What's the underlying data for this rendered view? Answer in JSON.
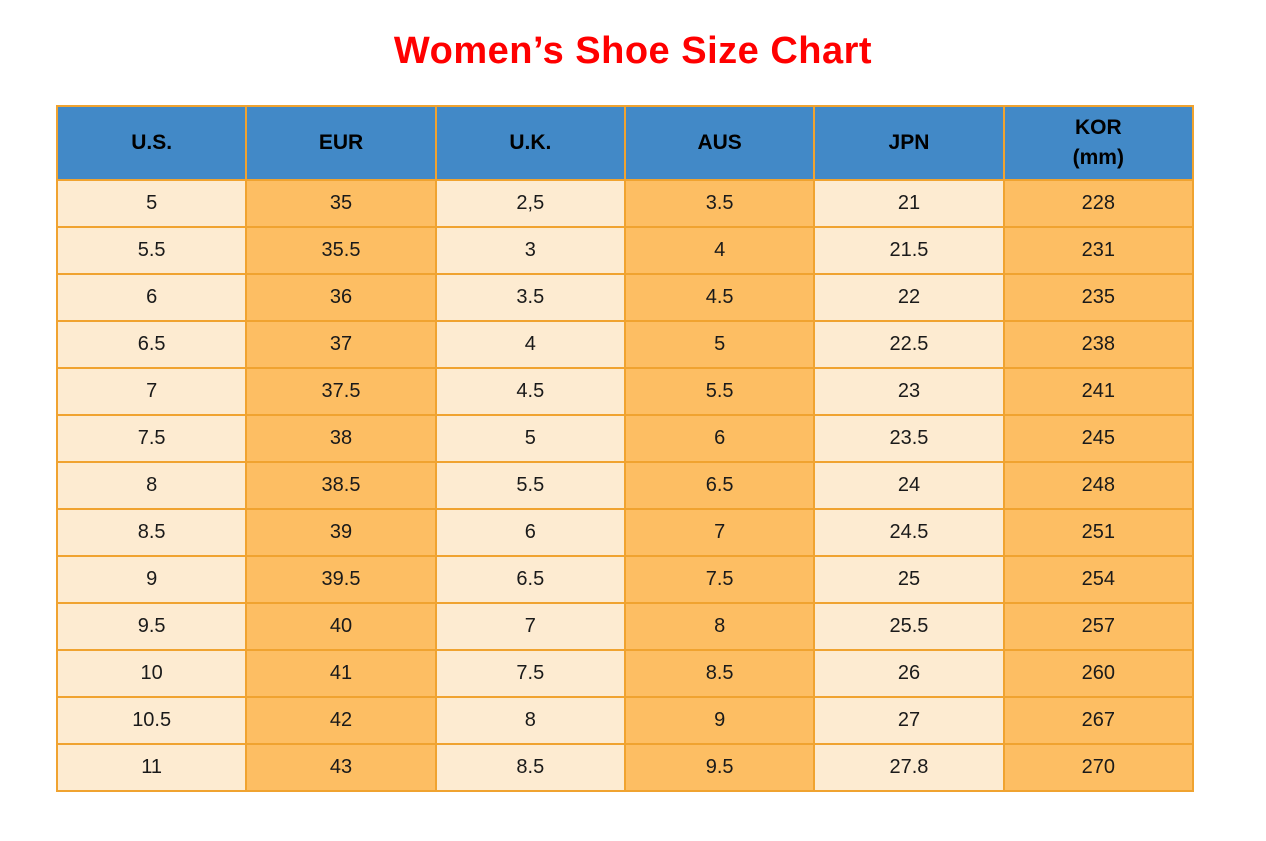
{
  "page": {
    "title": "Women’s Shoe Size Chart"
  },
  "colors": {
    "header_bg": "#4289C7",
    "row_cream": "#FDEBD1",
    "row_orange": "#FDBE63",
    "border": "#F0A330",
    "title": "#FF0000",
    "header_text": "#000000",
    "cell_text": "#1A1A1A"
  },
  "table": {
    "columns": [
      {
        "key": "us",
        "label": "U.S."
      },
      {
        "key": "eur",
        "label": "EUR"
      },
      {
        "key": "uk",
        "label": "U.K."
      },
      {
        "key": "aus",
        "label": "AUS"
      },
      {
        "key": "jpn",
        "label": "JPN"
      },
      {
        "key": "kor",
        "label": "KOR",
        "label2": "(mm)"
      }
    ],
    "rows": [
      [
        "5",
        "35",
        "2,5",
        "3.5",
        "21",
        "228"
      ],
      [
        "5.5",
        "35.5",
        "3",
        "4",
        "21.5",
        "231"
      ],
      [
        "6",
        "36",
        "3.5",
        "4.5",
        "22",
        "235"
      ],
      [
        "6.5",
        "37",
        "4",
        "5",
        "22.5",
        "238"
      ],
      [
        "7",
        "37.5",
        "4.5",
        "5.5",
        "23",
        "241"
      ],
      [
        "7.5",
        "38",
        "5",
        "6",
        "23.5",
        "245"
      ],
      [
        "8",
        "38.5",
        "5.5",
        "6.5",
        "24",
        "248"
      ],
      [
        "8.5",
        "39",
        "6",
        "7",
        "24.5",
        "251"
      ],
      [
        "9",
        "39.5",
        "6.5",
        "7.5",
        "25",
        "254"
      ],
      [
        "9.5",
        "40",
        "7",
        "8",
        "25.5",
        "257"
      ],
      [
        "10",
        "41",
        "7.5",
        "8.5",
        "26",
        "260"
      ],
      [
        "10.5",
        "42",
        "8",
        "9",
        "27",
        "267"
      ],
      [
        "11",
        "43",
        "8.5",
        "9.5",
        "27.8",
        "270"
      ]
    ]
  },
  "chart_data": {
    "type": "table",
    "title": "Women’s Shoe Size Chart",
    "columns": [
      "U.S.",
      "EUR",
      "U.K.",
      "AUS",
      "JPN",
      "KOR (mm)"
    ],
    "rows": [
      [
        "5",
        "35",
        "2,5",
        "3.5",
        "21",
        "228"
      ],
      [
        "5.5",
        "35.5",
        "3",
        "4",
        "21.5",
        "231"
      ],
      [
        "6",
        "36",
        "3.5",
        "4.5",
        "22",
        "235"
      ],
      [
        "6.5",
        "37",
        "4",
        "5",
        "22.5",
        "238"
      ],
      [
        "7",
        "37.5",
        "4.5",
        "5.5",
        "23",
        "241"
      ],
      [
        "7.5",
        "38",
        "5",
        "6",
        "23.5",
        "245"
      ],
      [
        "8",
        "38.5",
        "5.5",
        "6.5",
        "24",
        "248"
      ],
      [
        "8.5",
        "39",
        "6",
        "7",
        "24.5",
        "251"
      ],
      [
        "9",
        "39.5",
        "6.5",
        "7.5",
        "25",
        "254"
      ],
      [
        "9.5",
        "40",
        "7",
        "8",
        "25.5",
        "257"
      ],
      [
        "10",
        "41",
        "7.5",
        "8.5",
        "26",
        "260"
      ],
      [
        "10.5",
        "42",
        "8",
        "9",
        "27",
        "267"
      ],
      [
        "11",
        "43",
        "8.5",
        "9.5",
        "27.8",
        "270"
      ]
    ],
    "layout": {
      "header_position": "top",
      "column_fill_alternation": [
        "cream",
        "orange"
      ],
      "grid": true
    }
  }
}
